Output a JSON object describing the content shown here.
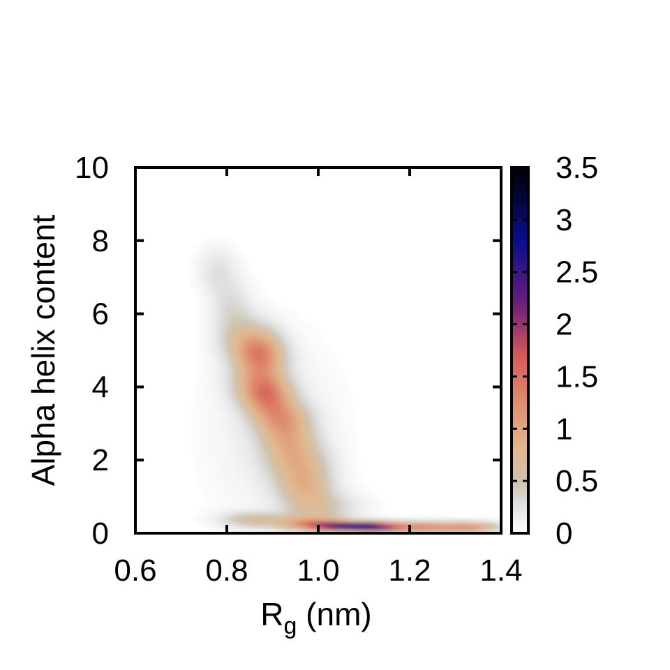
{
  "chart_data": {
    "type": "heatmap",
    "title": "",
    "xlabel": {
      "main": "R",
      "subscript": "g",
      "suffix": " (nm)"
    },
    "ylabel": "Alpha helix content",
    "xlim": [
      0.6,
      1.4
    ],
    "ylim": [
      0,
      10
    ],
    "x_ticks": [
      "0.6",
      "0.8",
      "1.0",
      "1.2",
      "1.4"
    ],
    "x_tick_values": [
      0.6,
      0.8,
      1.0,
      1.2,
      1.4
    ],
    "y_ticks": [
      "0",
      "2",
      "4",
      "6",
      "8",
      "10"
    ],
    "y_tick_values": [
      0,
      2,
      4,
      6,
      8,
      10
    ],
    "colorbar": {
      "range": [
        0,
        3.5
      ],
      "ticks": [
        "0",
        "0.5",
        "1",
        "1.5",
        "2",
        "2.5",
        "3",
        "3.5"
      ],
      "tick_values": [
        0,
        0.5,
        1,
        1.5,
        2,
        2.5,
        3,
        3.5
      ],
      "palette": [
        {
          "v": 0.0,
          "color": "#ffffff"
        },
        {
          "v": 0.3,
          "color": "#dcdcdc"
        },
        {
          "v": 0.5,
          "color": "#cfc2ad"
        },
        {
          "v": 0.8,
          "color": "#e2b88e"
        },
        {
          "v": 1.2,
          "color": "#e09272"
        },
        {
          "v": 1.7,
          "color": "#d35a58"
        },
        {
          "v": 2.2,
          "color": "#6a1f7a"
        },
        {
          "v": 2.8,
          "color": "#0a0d8c"
        },
        {
          "v": 3.5,
          "color": "#000000"
        }
      ]
    },
    "density_blobs": [
      {
        "x": 0.78,
        "y": 7.2,
        "sx": 0.03,
        "sy": 0.45,
        "v": 0.25
      },
      {
        "x": 0.81,
        "y": 6.2,
        "sx": 0.03,
        "sy": 0.5,
        "v": 0.28
      },
      {
        "x": 0.84,
        "y": 5.3,
        "sx": 0.04,
        "sy": 0.45,
        "v": 0.5
      },
      {
        "x": 0.875,
        "y": 4.9,
        "sx": 0.035,
        "sy": 0.4,
        "v": 1.05
      },
      {
        "x": 0.87,
        "y": 4.1,
        "sx": 0.04,
        "sy": 0.4,
        "v": 0.7
      },
      {
        "x": 0.89,
        "y": 3.75,
        "sx": 0.035,
        "sy": 0.35,
        "v": 0.85
      },
      {
        "x": 0.92,
        "y": 3.15,
        "sx": 0.04,
        "sy": 0.35,
        "v": 0.85
      },
      {
        "x": 0.935,
        "y": 2.5,
        "sx": 0.04,
        "sy": 0.4,
        "v": 0.6
      },
      {
        "x": 0.96,
        "y": 1.9,
        "sx": 0.045,
        "sy": 0.4,
        "v": 0.55
      },
      {
        "x": 0.97,
        "y": 1.3,
        "sx": 0.04,
        "sy": 0.35,
        "v": 0.6
      },
      {
        "x": 0.99,
        "y": 0.7,
        "sx": 0.045,
        "sy": 0.3,
        "v": 0.45
      },
      {
        "x": 0.9,
        "y": 2.8,
        "sx": 0.1,
        "sy": 1.8,
        "v": 0.15
      },
      {
        "x": 0.86,
        "y": 0.38,
        "sx": 0.05,
        "sy": 0.14,
        "v": 0.6
      },
      {
        "x": 0.98,
        "y": 0.3,
        "sx": 0.05,
        "sy": 0.12,
        "v": 0.7
      },
      {
        "x": 1.06,
        "y": 0.2,
        "sx": 0.06,
        "sy": 0.09,
        "v": 2.2
      },
      {
        "x": 1.12,
        "y": 0.15,
        "sx": 0.03,
        "sy": 0.07,
        "v": 1.2
      },
      {
        "x": 1.22,
        "y": 0.18,
        "sx": 0.08,
        "sy": 0.1,
        "v": 1.3
      },
      {
        "x": 1.34,
        "y": 0.18,
        "sx": 0.04,
        "sy": 0.09,
        "v": 0.8
      },
      {
        "x": 1.05,
        "y": 0.7,
        "sx": 0.05,
        "sy": 0.3,
        "v": 0.15
      }
    ]
  }
}
